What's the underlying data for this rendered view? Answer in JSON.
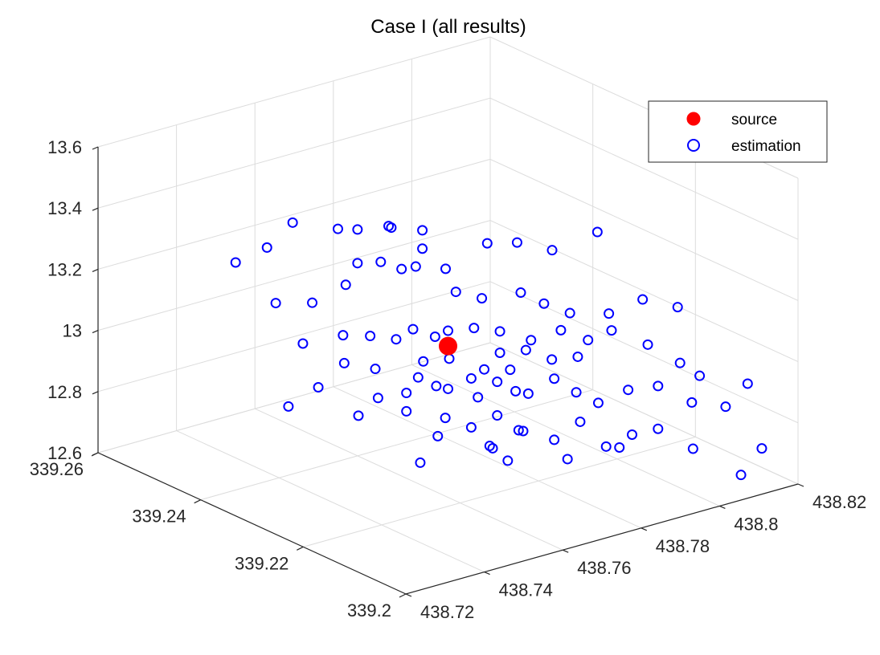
{
  "chart_data": {
    "type": "scatter3d",
    "title": "Case I (all results)",
    "xlabel": "",
    "ylabel": "",
    "zlabel": "",
    "x_ticks": [
      "438.72",
      "438.74",
      "438.76",
      "438.78",
      "438.8",
      "438.82"
    ],
    "y_ticks": [
      "339.2",
      "339.22",
      "339.24",
      "339.26"
    ],
    "z_ticks": [
      "12.6",
      "12.8",
      "13",
      "13.2",
      "13.4",
      "13.6"
    ],
    "xlim": [
      438.72,
      438.82
    ],
    "ylim": [
      339.2,
      339.26
    ],
    "zlim": [
      12.6,
      13.6
    ],
    "grid": true,
    "legend_position": "top-right",
    "series": [
      {
        "name": "source",
        "marker": "filled-circle",
        "color": "#ff0000",
        "points": [
          [
            438.77,
            339.23,
            13.0
          ]
        ]
      },
      {
        "name": "estimation",
        "marker": "open-circle",
        "color": "#0000ff",
        "points": [
          [
            438.75,
            339.25,
            13.24
          ],
          [
            438.75,
            339.245,
            13.36
          ],
          [
            438.755,
            339.24,
            13.36
          ],
          [
            438.76,
            339.24,
            13.34
          ],
          [
            438.764,
            339.237,
            13.36
          ],
          [
            438.766,
            339.238,
            13.34
          ],
          [
            438.77,
            339.235,
            13.34
          ],
          [
            438.77,
            339.235,
            13.28
          ],
          [
            438.78,
            339.23,
            13.3
          ],
          [
            438.785,
            339.228,
            13.3
          ],
          [
            438.795,
            339.22,
            13.36
          ],
          [
            438.79,
            339.225,
            13.28
          ],
          [
            438.762,
            339.237,
            13.25
          ],
          [
            438.767,
            339.234,
            13.24
          ],
          [
            438.772,
            339.232,
            13.23
          ],
          [
            438.766,
            339.236,
            13.22
          ],
          [
            438.76,
            339.24,
            13.23
          ],
          [
            438.757,
            339.24,
            13.17
          ],
          [
            438.755,
            339.245,
            13.08
          ],
          [
            438.772,
            339.23,
            13.17
          ],
          [
            438.776,
            339.228,
            13.15
          ],
          [
            438.782,
            339.225,
            13.17
          ],
          [
            438.784,
            339.222,
            13.15
          ],
          [
            438.788,
            339.22,
            13.12
          ],
          [
            438.794,
            339.217,
            13.12
          ],
          [
            438.8,
            339.215,
            13.16
          ],
          [
            438.805,
            339.212,
            13.14
          ],
          [
            438.796,
            339.218,
            13.05
          ],
          [
            438.8,
            339.214,
            13.02
          ],
          [
            438.758,
            339.236,
            13.03
          ],
          [
            438.765,
            339.233,
            13.05
          ],
          [
            438.77,
            339.23,
            13.05
          ],
          [
            438.774,
            339.228,
            13.06
          ],
          [
            438.778,
            339.226,
            13.05
          ],
          [
            438.782,
            339.223,
            13.03
          ],
          [
            438.787,
            339.221,
            13.06
          ],
          [
            438.79,
            339.218,
            13.04
          ],
          [
            438.762,
            339.234,
            13.02
          ],
          [
            438.768,
            339.231,
            13.03
          ],
          [
            438.778,
            339.226,
            12.98
          ],
          [
            438.782,
            339.224,
            12.99
          ],
          [
            438.786,
            339.222,
            12.96
          ],
          [
            438.79,
            339.22,
            12.97
          ],
          [
            438.754,
            339.238,
            12.94
          ],
          [
            438.758,
            339.235,
            12.93
          ],
          [
            438.762,
            339.232,
            12.86
          ],
          [
            438.767,
            339.23,
            12.88
          ],
          [
            438.772,
            339.227,
            12.91
          ],
          [
            438.776,
            339.225,
            12.9
          ],
          [
            438.78,
            339.222,
            12.87
          ],
          [
            438.784,
            339.22,
            12.92
          ],
          [
            438.787,
            339.218,
            12.88
          ],
          [
            438.79,
            339.216,
            12.85
          ],
          [
            438.795,
            339.214,
            12.89
          ],
          [
            438.8,
            339.212,
            12.9
          ],
          [
            438.808,
            339.21,
            12.92
          ],
          [
            438.812,
            339.208,
            12.82
          ],
          [
            438.75,
            339.24,
            12.86
          ],
          [
            438.745,
            339.242,
            12.8
          ],
          [
            438.755,
            339.236,
            12.78
          ],
          [
            438.762,
            339.232,
            12.8
          ],
          [
            438.768,
            339.229,
            12.78
          ],
          [
            438.772,
            339.227,
            12.75
          ],
          [
            438.776,
            339.225,
            12.79
          ],
          [
            438.78,
            339.223,
            12.74
          ],
          [
            438.784,
            339.22,
            12.72
          ],
          [
            438.788,
            339.218,
            12.78
          ],
          [
            438.792,
            339.216,
            12.7
          ],
          [
            438.796,
            339.214,
            12.74
          ],
          [
            438.8,
            339.212,
            12.76
          ],
          [
            438.805,
            339.209,
            12.7
          ],
          [
            438.812,
            339.205,
            12.62
          ],
          [
            438.816,
            339.204,
            12.7
          ],
          [
            438.806,
            339.21,
            12.84
          ],
          [
            438.815,
            339.206,
            12.9
          ],
          [
            438.803,
            339.21,
            12.98
          ],
          [
            438.774,
            339.226,
            12.94
          ],
          [
            438.778,
            339.224,
            12.94
          ],
          [
            438.765,
            339.231,
            12.96
          ],
          [
            438.769,
            339.229,
            12.97
          ],
          [
            438.75,
            339.243,
            12.98
          ],
          [
            438.755,
            339.239,
            13.02
          ],
          [
            438.747,
            339.246,
            13.1
          ],
          [
            438.742,
            339.25,
            13.22
          ],
          [
            438.76,
            339.236,
            12.82
          ],
          [
            438.77,
            339.232,
            12.69
          ],
          [
            438.778,
            339.228,
            12.66
          ],
          [
            438.78,
            339.226,
            12.62
          ],
          [
            438.79,
            339.222,
            12.62
          ],
          [
            438.798,
            339.218,
            12.66
          ],
          [
            438.776,
            339.24,
            12.52
          ],
          [
            438.784,
            339.232,
            12.6
          ],
          [
            438.788,
            339.23,
            12.66
          ],
          [
            438.765,
            339.232,
            12.9
          ],
          [
            438.77,
            339.23,
            12.86
          ],
          [
            438.775,
            339.228,
            12.83
          ],
          [
            438.782,
            339.226,
            12.84
          ]
        ]
      }
    ]
  }
}
